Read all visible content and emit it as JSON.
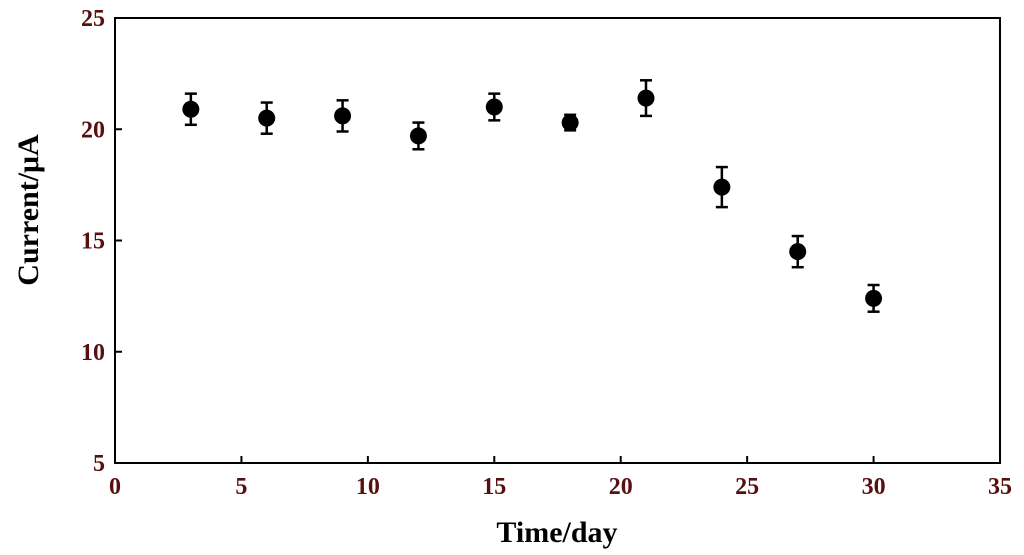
{
  "chart_data": {
    "type": "scatter",
    "title": "",
    "xlabel": "Time/day",
    "ylabel": "Current/μA",
    "xlim": [
      0,
      35
    ],
    "ylim": [
      5,
      25
    ],
    "xticks": [
      0,
      5,
      10,
      15,
      20,
      25,
      30,
      35
    ],
    "yticks": [
      5,
      10,
      15,
      20,
      25
    ],
    "grid": false,
    "series": [
      {
        "x": [
          3,
          6,
          9,
          12,
          15,
          18,
          21,
          24,
          27,
          30
        ],
        "y": [
          20.9,
          20.5,
          20.6,
          19.7,
          21.0,
          20.3,
          21.4,
          17.4,
          14.5,
          12.4
        ],
        "yerr": [
          0.7,
          0.7,
          0.7,
          0.6,
          0.6,
          0.35,
          0.8,
          0.9,
          0.7,
          0.6
        ]
      }
    ],
    "colors": {
      "axis_text": "#5a0f0f",
      "marker": "#000000",
      "axis_line": "#000000"
    }
  }
}
